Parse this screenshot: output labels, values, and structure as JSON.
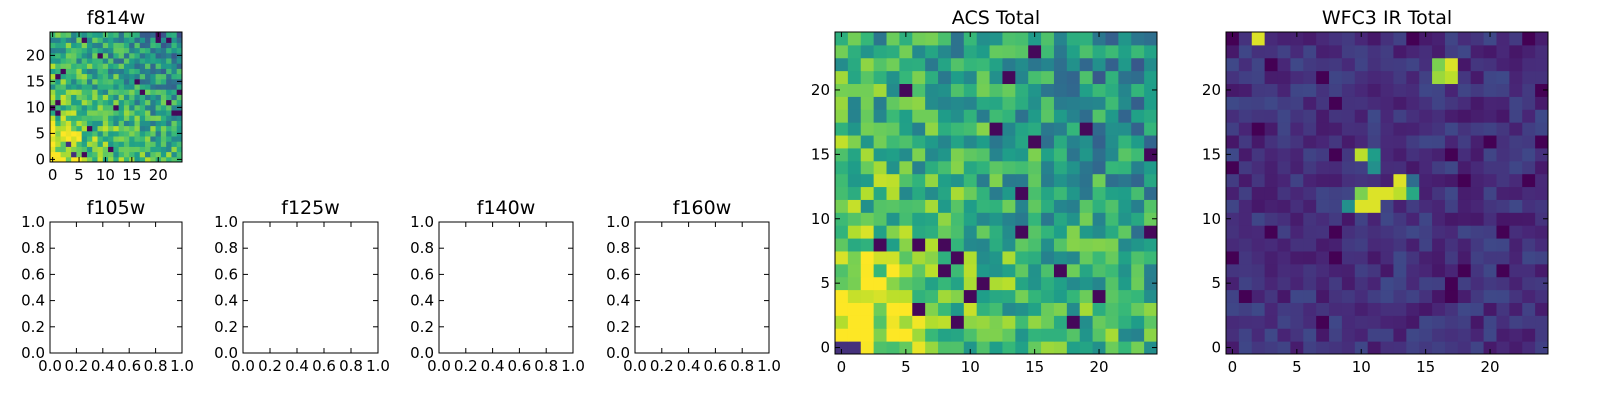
{
  "chart_data": [
    {
      "type": "heatmap",
      "title": "f814w",
      "x_ticks": [
        "0",
        "5",
        "10",
        "15",
        "20"
      ],
      "y_ticks": [
        "0",
        "5",
        "10",
        "15",
        "20"
      ],
      "grid_size": 25,
      "xlim": [
        -0.5,
        24.5
      ],
      "ylim": [
        -0.5,
        24.5
      ],
      "colormap": "viridis",
      "pattern": "noise_bright_lower_left"
    },
    {
      "type": "empty",
      "title": "f105w",
      "x_ticks": [
        "0.0",
        "0.2",
        "0.4",
        "0.6",
        "0.8",
        "1.0"
      ],
      "y_ticks": [
        "0.0",
        "0.2",
        "0.4",
        "0.6",
        "0.8",
        "1.0"
      ],
      "xlim": [
        0,
        1
      ],
      "ylim": [
        0,
        1
      ]
    },
    {
      "type": "empty",
      "title": "f125w",
      "x_ticks": [
        "0.0",
        "0.2",
        "0.4",
        "0.6",
        "0.8",
        "1.0"
      ],
      "y_ticks": [
        "0.0",
        "0.2",
        "0.4",
        "0.6",
        "0.8",
        "1.0"
      ],
      "xlim": [
        0,
        1
      ],
      "ylim": [
        0,
        1
      ]
    },
    {
      "type": "empty",
      "title": "f140w",
      "x_ticks": [
        "0.0",
        "0.2",
        "0.4",
        "0.6",
        "0.8",
        "1.0"
      ],
      "y_ticks": [
        "0.0",
        "0.2",
        "0.4",
        "0.6",
        "0.8",
        "1.0"
      ],
      "xlim": [
        0,
        1
      ],
      "ylim": [
        0,
        1
      ]
    },
    {
      "type": "empty",
      "title": "f160w",
      "x_ticks": [
        "0.0",
        "0.2",
        "0.4",
        "0.6",
        "0.8",
        "1.0"
      ],
      "y_ticks": [
        "0.0",
        "0.2",
        "0.4",
        "0.6",
        "0.8",
        "1.0"
      ],
      "xlim": [
        0,
        1
      ],
      "ylim": [
        0,
        1
      ]
    },
    {
      "type": "heatmap",
      "title": "ACS Total",
      "x_ticks": [
        "0",
        "5",
        "10",
        "15",
        "20"
      ],
      "y_ticks": [
        "0",
        "5",
        "10",
        "15",
        "20"
      ],
      "grid_size": 25,
      "xlim": [
        -0.5,
        24.5
      ],
      "ylim": [
        -0.5,
        24.5
      ],
      "colormap": "viridis",
      "pattern": "noise_bright_lower_left"
    },
    {
      "type": "heatmap",
      "title": "WFC3 IR Total",
      "x_ticks": [
        "0",
        "5",
        "10",
        "15",
        "20"
      ],
      "y_ticks": [
        "0",
        "5",
        "10",
        "15",
        "20"
      ],
      "grid_size": 25,
      "xlim": [
        -0.5,
        24.5
      ],
      "ylim": [
        -0.5,
        24.5
      ],
      "colormap": "viridis",
      "pattern": "dark_with_bright_sources",
      "bright_cells": [
        [
          2,
          24,
          0.95
        ],
        [
          16,
          22,
          0.8
        ],
        [
          17,
          22,
          0.95
        ],
        [
          16,
          21,
          0.85
        ],
        [
          17,
          21,
          0.9
        ],
        [
          10,
          15,
          0.9
        ],
        [
          11,
          15,
          0.55
        ],
        [
          11,
          14,
          0.5
        ],
        [
          13,
          13,
          0.95
        ],
        [
          12,
          12,
          0.95
        ],
        [
          13,
          12,
          0.9
        ],
        [
          11,
          12,
          0.95
        ],
        [
          10,
          12,
          0.8
        ],
        [
          14,
          12,
          0.6
        ],
        [
          10,
          11,
          0.95
        ],
        [
          11,
          11,
          0.95
        ],
        [
          9,
          11,
          0.5
        ],
        [
          14,
          13,
          0.35
        ]
      ]
    }
  ]
}
